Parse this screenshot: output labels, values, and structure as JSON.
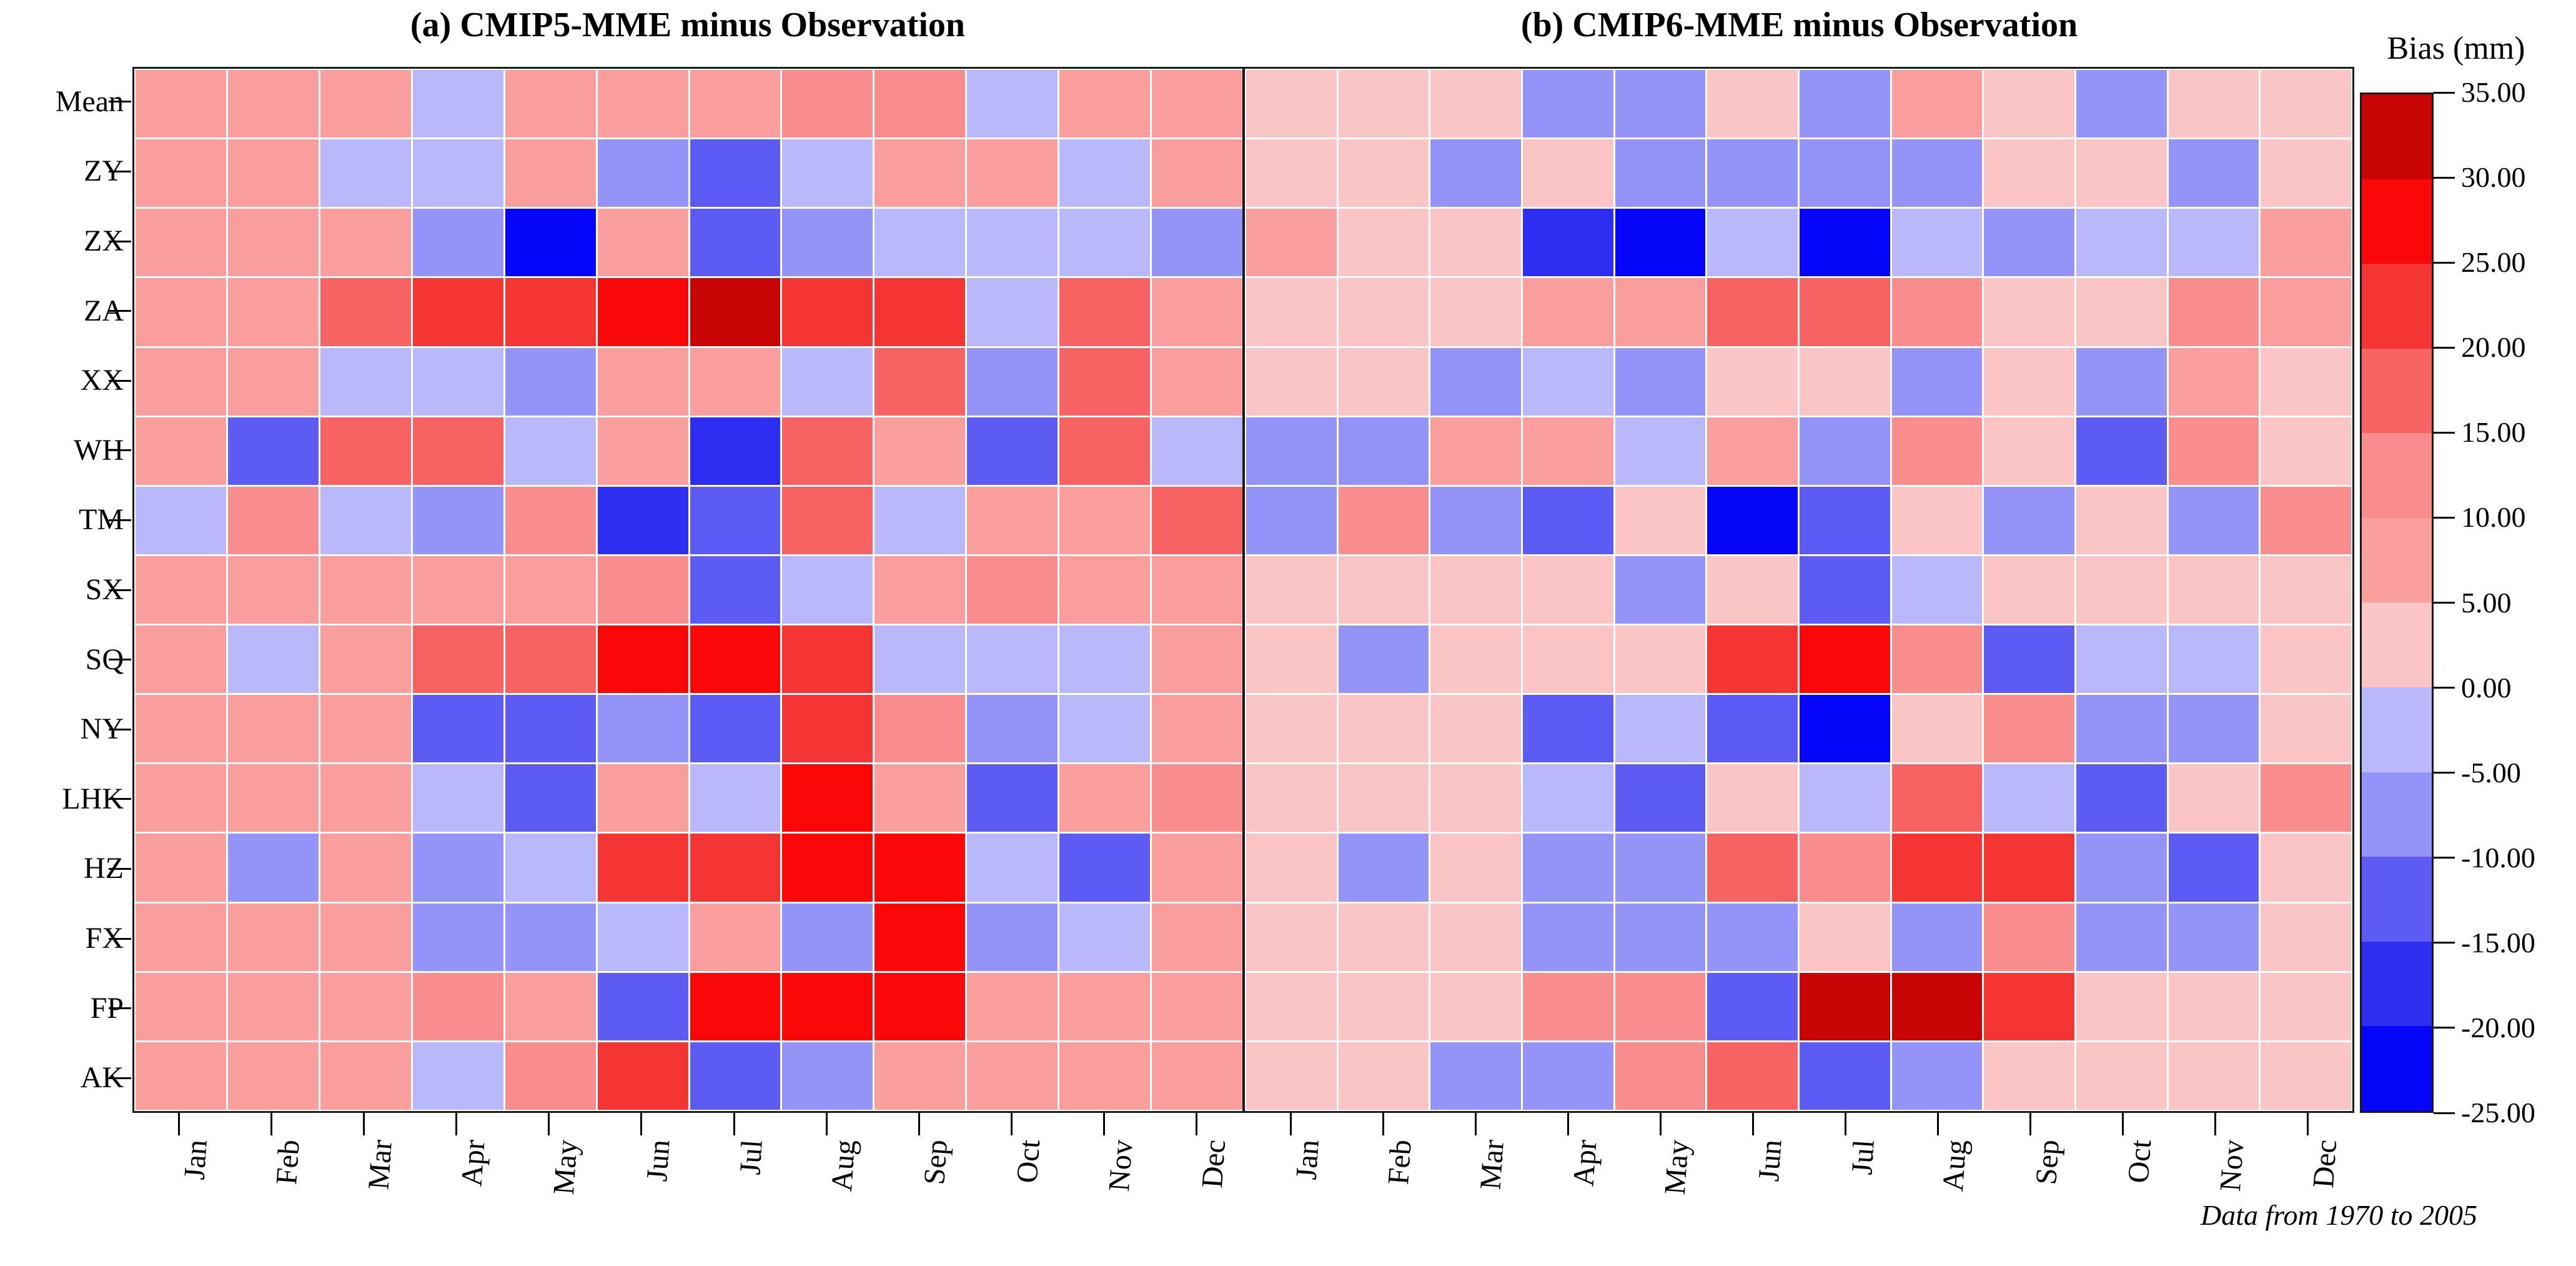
{
  "chart_data": {
    "type": "heatmap",
    "x_labels": [
      "Jan",
      "Feb",
      "Mar",
      "Apr",
      "May",
      "Jun",
      "Jul",
      "Aug",
      "Sep",
      "Oct",
      "Nov",
      "Dec"
    ],
    "y_labels": [
      "Mean",
      "ZY",
      "ZX",
      "ZA",
      "XX",
      "WH",
      "TM",
      "SX",
      "SQ",
      "NY",
      "LHK",
      "HZ",
      "FX",
      "FP",
      "AK"
    ],
    "value_label": "Bias (mm)",
    "value_range": [
      -25,
      35
    ],
    "bin_size": 5,
    "legend_position": "right",
    "panels": [
      {
        "id": "a",
        "title": "(a) CMIP5-MME minus Observation",
        "values": [
          [
            7.5,
            7.5,
            7.5,
            -2.5,
            7.5,
            7.5,
            7.5,
            12.5,
            12.5,
            -2.5,
            7.5,
            7.5
          ],
          [
            7.5,
            7.5,
            -2.5,
            -2.5,
            7.5,
            -7.5,
            -12.5,
            -2.5,
            7.5,
            7.5,
            -2.5,
            7.5
          ],
          [
            7.5,
            7.5,
            7.5,
            -7.5,
            -22.5,
            7.5,
            -12.5,
            -7.5,
            -2.5,
            -2.5,
            -2.5,
            -7.5
          ],
          [
            7.5,
            7.5,
            17.5,
            22.5,
            22.5,
            27.5,
            32.5,
            22.5,
            22.5,
            -2.5,
            17.5,
            7.5
          ],
          [
            7.5,
            7.5,
            -2.5,
            -2.5,
            -7.5,
            7.5,
            7.5,
            -2.5,
            17.5,
            -7.5,
            17.5,
            7.5
          ],
          [
            7.5,
            -12.5,
            17.5,
            17.5,
            -2.5,
            7.5,
            -17.5,
            17.5,
            7.5,
            -12.5,
            17.5,
            -2.5
          ],
          [
            -2.5,
            12.5,
            -2.5,
            -7.5,
            12.5,
            -17.5,
            -12.5,
            17.5,
            -2.5,
            7.5,
            7.5,
            17.5
          ],
          [
            7.5,
            7.5,
            7.5,
            7.5,
            7.5,
            12.5,
            -12.5,
            -2.5,
            7.5,
            12.5,
            7.5,
            7.5
          ],
          [
            7.5,
            -2.5,
            7.5,
            17.5,
            17.5,
            27.5,
            27.5,
            22.5,
            -2.5,
            -2.5,
            -2.5,
            7.5
          ],
          [
            7.5,
            7.5,
            7.5,
            -12.5,
            -12.5,
            -7.5,
            -12.5,
            22.5,
            12.5,
            -7.5,
            -2.5,
            7.5
          ],
          [
            7.5,
            7.5,
            7.5,
            -2.5,
            -12.5,
            7.5,
            -2.5,
            27.5,
            7.5,
            -12.5,
            7.5,
            12.5
          ],
          [
            7.5,
            -7.5,
            7.5,
            -7.5,
            -2.5,
            22.5,
            22.5,
            27.5,
            27.5,
            -2.5,
            -12.5,
            7.5
          ],
          [
            7.5,
            7.5,
            7.5,
            -7.5,
            -7.5,
            -2.5,
            7.5,
            -7.5,
            27.5,
            -7.5,
            -2.5,
            7.5
          ],
          [
            7.5,
            7.5,
            7.5,
            12.5,
            7.5,
            -12.5,
            27.5,
            27.5,
            27.5,
            7.5,
            7.5,
            7.5
          ],
          [
            7.5,
            7.5,
            7.5,
            -2.5,
            12.5,
            22.5,
            -12.5,
            -7.5,
            7.5,
            7.5,
            7.5,
            7.5
          ]
        ]
      },
      {
        "id": "b",
        "title": "(b) CMIP6-MME minus Observation",
        "values": [
          [
            2.5,
            2.5,
            2.5,
            -7.5,
            -7.5,
            2.5,
            -7.5,
            7.5,
            2.5,
            -7.5,
            2.5,
            2.5
          ],
          [
            2.5,
            2.5,
            -7.5,
            2.5,
            -7.5,
            -7.5,
            -7.5,
            -7.5,
            2.5,
            2.5,
            -7.5,
            2.5
          ],
          [
            7.5,
            2.5,
            2.5,
            -17.5,
            -22.5,
            -2.5,
            -22.5,
            -2.5,
            -7.5,
            -2.5,
            -2.5,
            7.5
          ],
          [
            2.5,
            2.5,
            2.5,
            7.5,
            7.5,
            17.5,
            17.5,
            12.5,
            2.5,
            2.5,
            12.5,
            7.5
          ],
          [
            2.5,
            2.5,
            -7.5,
            -2.5,
            -7.5,
            2.5,
            2.5,
            -7.5,
            2.5,
            -7.5,
            7.5,
            2.5
          ],
          [
            -7.5,
            -7.5,
            7.5,
            7.5,
            -2.5,
            7.5,
            -7.5,
            12.5,
            2.5,
            -12.5,
            12.5,
            2.5
          ],
          [
            -7.5,
            12.5,
            -7.5,
            -12.5,
            2.5,
            -22.5,
            -12.5,
            2.5,
            -7.5,
            2.5,
            -7.5,
            12.5
          ],
          [
            2.5,
            2.5,
            2.5,
            2.5,
            -7.5,
            2.5,
            -12.5,
            -2.5,
            2.5,
            2.5,
            2.5,
            2.5
          ],
          [
            2.5,
            -7.5,
            2.5,
            2.5,
            2.5,
            22.5,
            27.5,
            12.5,
            -12.5,
            -2.5,
            -2.5,
            2.5
          ],
          [
            2.5,
            2.5,
            2.5,
            -12.5,
            -2.5,
            -12.5,
            -22.5,
            2.5,
            12.5,
            -7.5,
            -7.5,
            2.5
          ],
          [
            2.5,
            2.5,
            2.5,
            -2.5,
            -12.5,
            2.5,
            -2.5,
            17.5,
            -2.5,
            -12.5,
            2.5,
            12.5
          ],
          [
            2.5,
            -7.5,
            2.5,
            -7.5,
            -7.5,
            17.5,
            12.5,
            22.5,
            22.5,
            -7.5,
            -12.5,
            2.5
          ],
          [
            2.5,
            2.5,
            2.5,
            -7.5,
            -7.5,
            -7.5,
            2.5,
            -7.5,
            12.5,
            -7.5,
            -7.5,
            2.5
          ],
          [
            2.5,
            2.5,
            2.5,
            12.5,
            12.5,
            -12.5,
            32.5,
            32.5,
            22.5,
            2.5,
            2.5,
            2.5
          ],
          [
            2.5,
            2.5,
            -7.5,
            -7.5,
            12.5,
            17.5,
            -12.5,
            -7.5,
            2.5,
            2.5,
            2.5,
            2.5
          ]
        ]
      }
    ],
    "colorbar": {
      "title": "Bias (mm)",
      "tick_labels_top_to_bottom": [
        "35.00",
        "30.00",
        "25.00",
        "20.00",
        "15.00",
        "10.00",
        "5.00",
        "0.00",
        "-5.00",
        "-10.00",
        "-15.00",
        "-20.00",
        "-25.00"
      ],
      "bin_colors_low_to_high": [
        "#0505fa",
        "#2e2ef2",
        "#5c5cf5",
        "#9494f8",
        "#b8b8fb",
        "#fcc5c5",
        "#fa9d9d",
        "#f98c8c",
        "#f76262",
        "#f53434",
        "#fa0707",
        "#c80404"
      ]
    },
    "footnote": "Data from 1970 to 2005",
    "grid": "white gaps between cells"
  }
}
